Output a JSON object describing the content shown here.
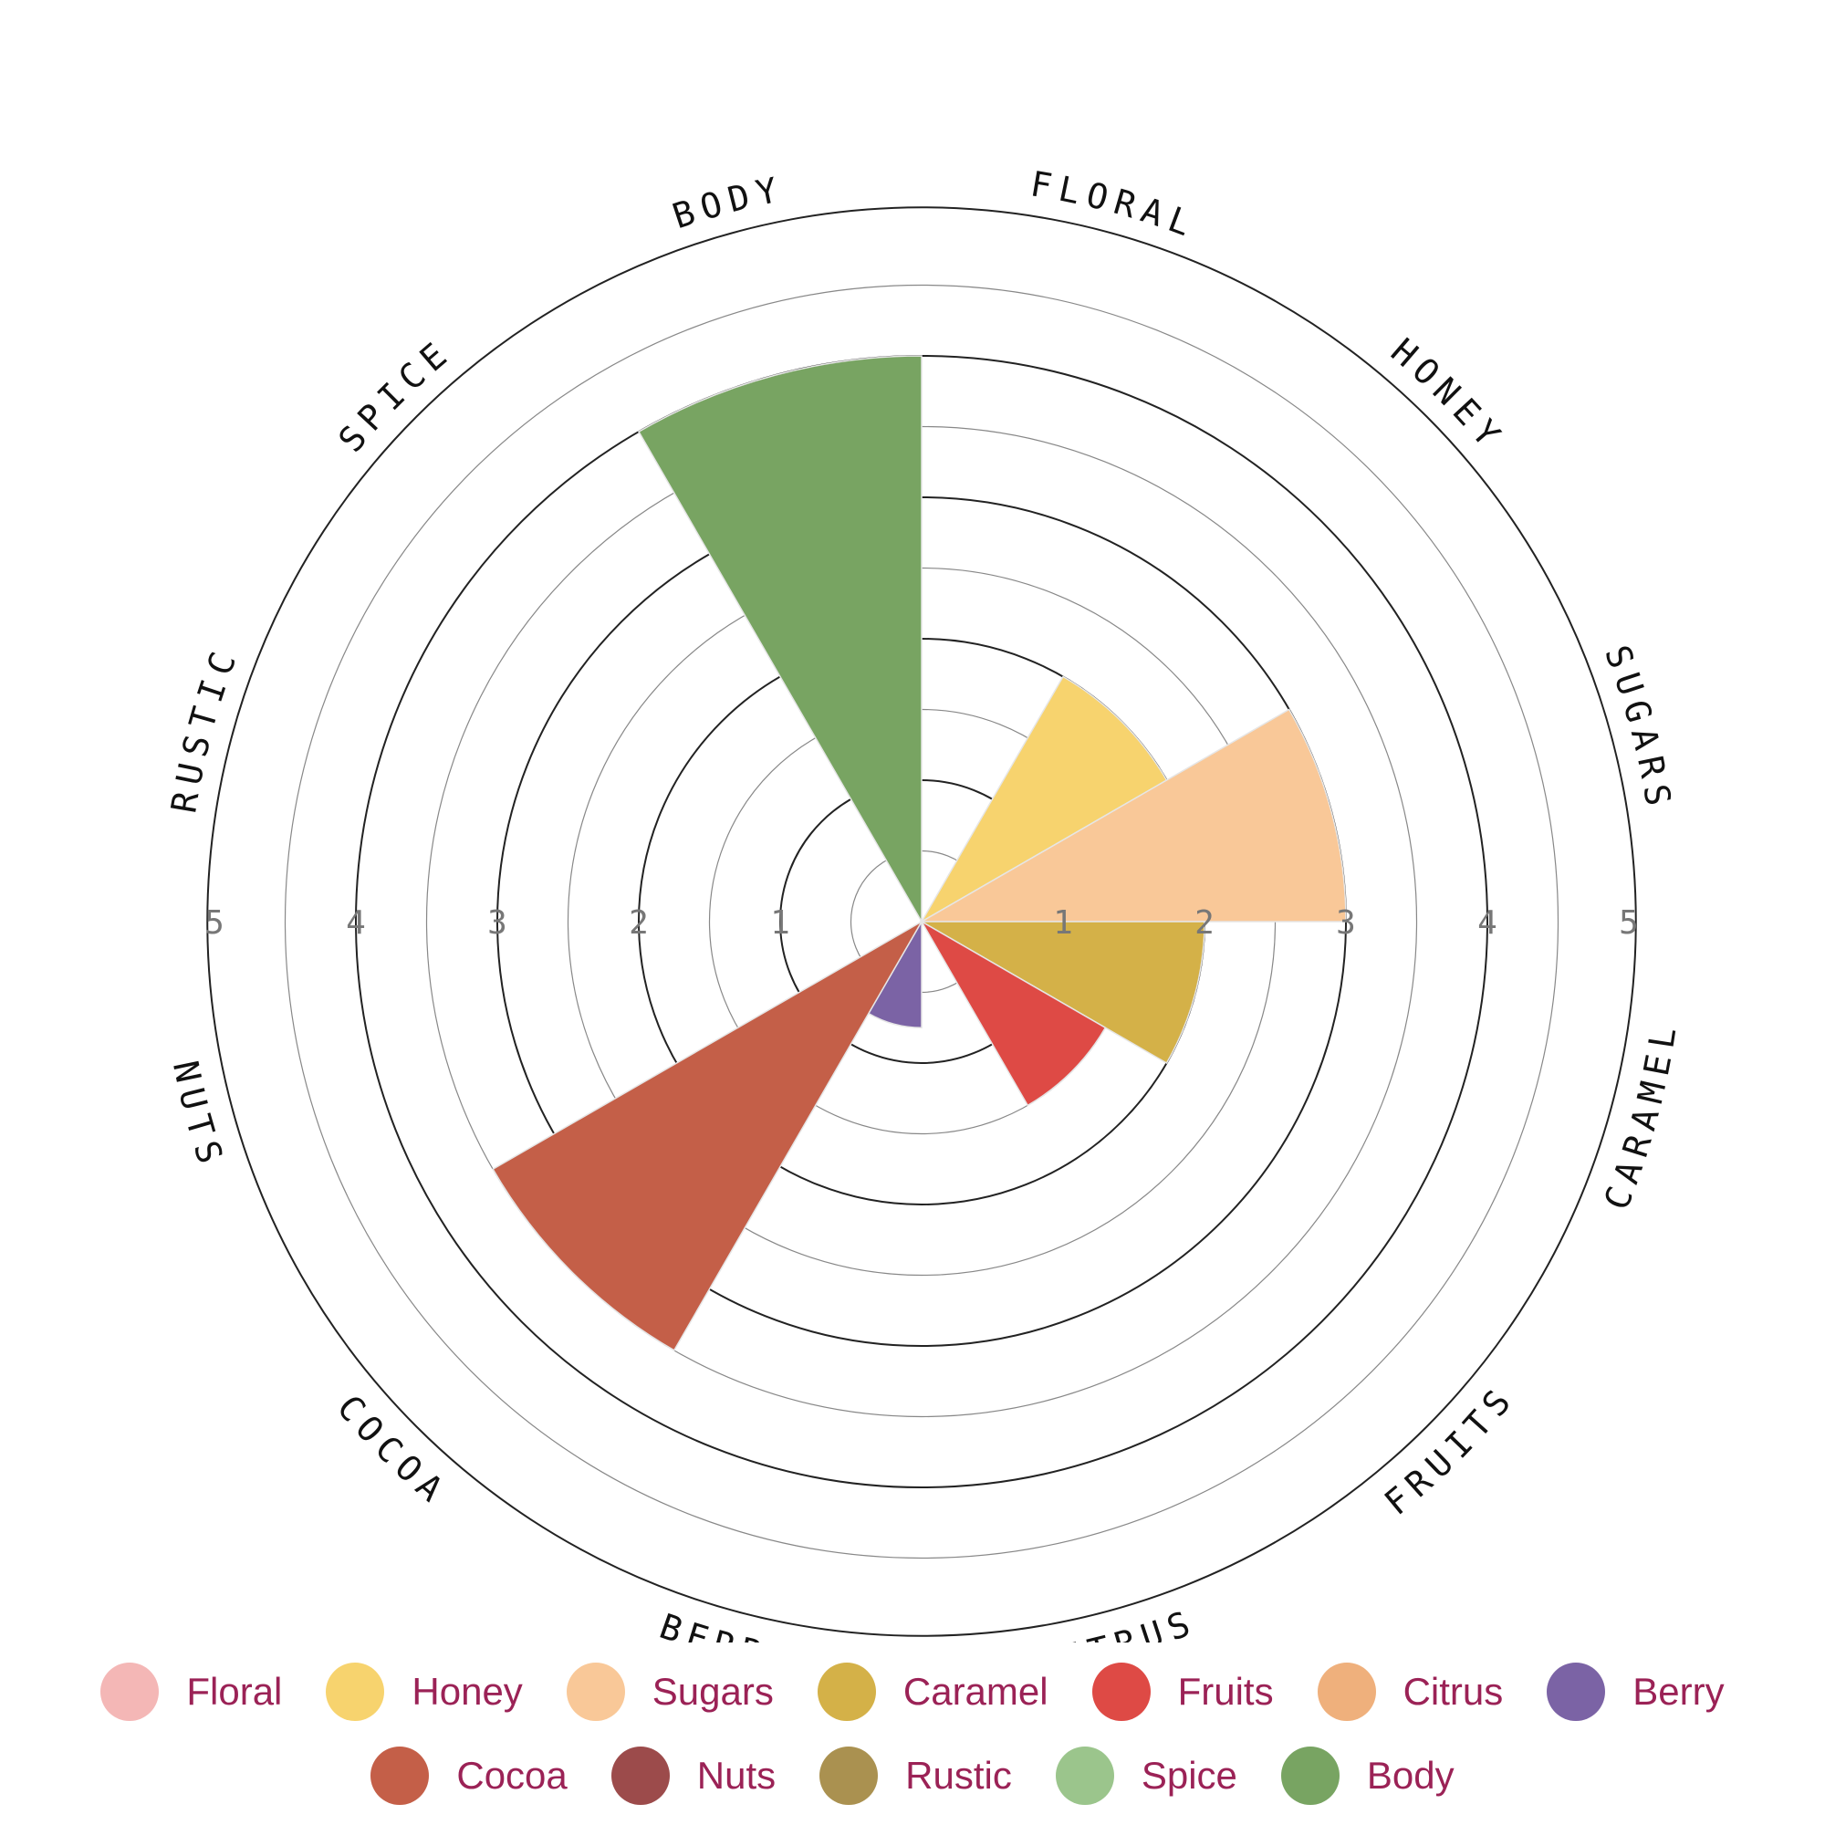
{
  "chart_data": {
    "type": "polar-area",
    "categories": [
      "Floral",
      "Honey",
      "Sugars",
      "Caramel",
      "Fruits",
      "Citrus",
      "Berry",
      "Cocoa",
      "Nuts",
      "Rustic",
      "Spice",
      "Body"
    ],
    "axis_labels": [
      "FLORAL",
      "HONEY",
      "SUGARS",
      "CARAMEL",
      "FRUITS",
      "CITRUS",
      "BERRY",
      "COCOA",
      "NUTS",
      "RUSTIC",
      "SPICE",
      "BODY"
    ],
    "values": [
      0,
      2,
      3,
      2,
      1.5,
      0,
      0.75,
      3.5,
      0,
      0,
      0,
      4
    ],
    "colors": [
      "#f4b7b6",
      "#f7d36e",
      "#f9c898",
      "#d4b148",
      "#de4a45",
      "#efb07c",
      "#7b63a5",
      "#c45f48",
      "#9c4b4b",
      "#aa9150",
      "#9bc58c",
      "#78a462"
    ],
    "rmax": 5,
    "ticks": [
      "1",
      "2",
      "3",
      "4",
      "5"
    ],
    "grid": true,
    "legend_position": "bottom"
  }
}
